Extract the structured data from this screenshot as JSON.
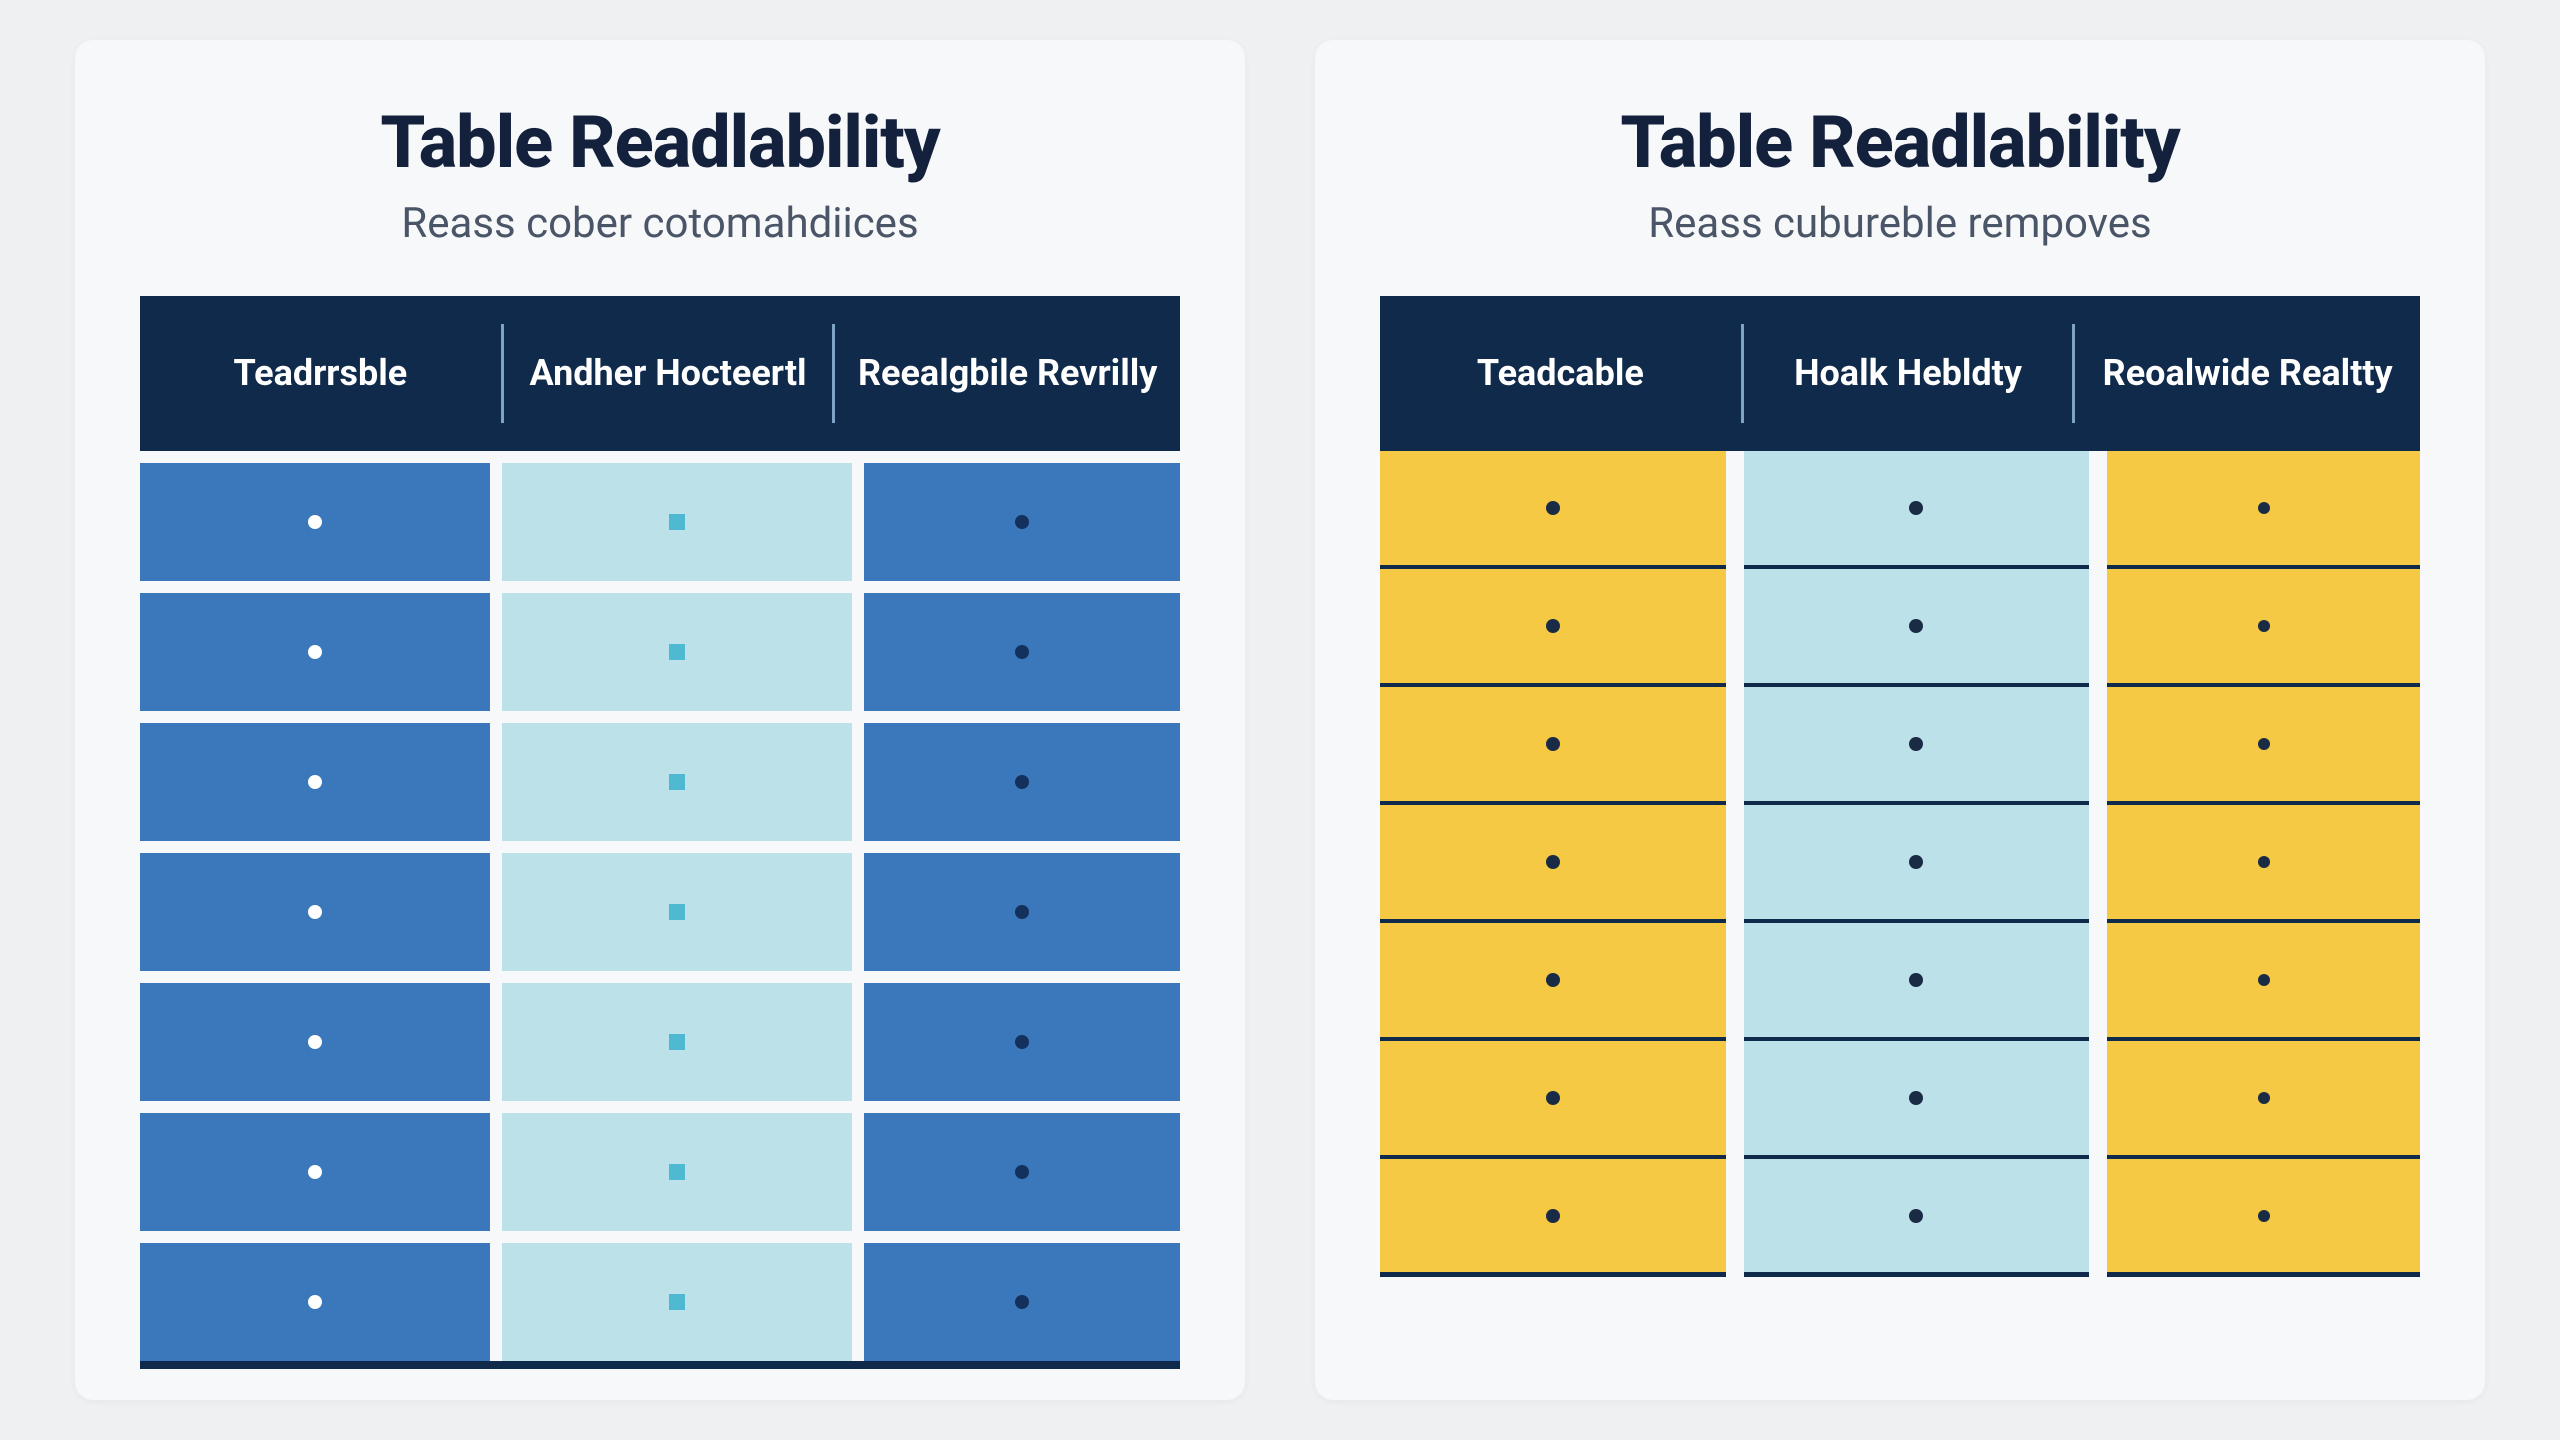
{
  "page_background": "#eef0f2",
  "card_background": "#f7f8f9",
  "title_color": "#14213d",
  "subtitle_color": "#4a5568",
  "header_bg": "#0f2a4a",
  "header_divider_color": "#7fa3c4",
  "left": {
    "title": "Table Readlability",
    "subtitle": "Reass cober cotomahdiices",
    "columns": [
      "Teadrrsble",
      "Andher Hocteertl",
      "Reealgbile Revrilly"
    ],
    "row_count": 7,
    "col_colors": [
      "#3a77bb",
      "#bde1e8",
      "#3a77bb"
    ],
    "row_gap_color": "#f7f8f9",
    "bottom_border_color": "#0f2a4a",
    "markers": {
      "col1": {
        "shape": "circle",
        "color": "#ffffff",
        "size": 14
      },
      "col2": {
        "shape": "square",
        "color": "#4fb9d1",
        "size": 16
      },
      "col3": {
        "shape": "circle",
        "color": "#13315c",
        "size": 14
      }
    }
  },
  "right": {
    "title": "Table Readlability",
    "subtitle": "Reass cubureble rempoves",
    "columns": [
      "Teadcable",
      "Hoalk Hebldty",
      "Reoalwide Realtty"
    ],
    "row_count": 7,
    "col_colors": [
      "#f6c945",
      "#bde1e8",
      "#f6c945"
    ],
    "row_divider_color": "#0f2a4a",
    "markers": {
      "col1": {
        "shape": "circle",
        "color": "#1a2b45",
        "size": 14
      },
      "col2": {
        "shape": "circle",
        "color": "#1a2b45",
        "size": 14
      },
      "col3": {
        "shape": "circle",
        "color": "#1a2b45",
        "size": 12
      }
    }
  },
  "typography": {
    "title_fontsize": 72,
    "title_weight": 800,
    "subtitle_fontsize": 42,
    "header_fontsize": 36,
    "header_weight": 700
  }
}
